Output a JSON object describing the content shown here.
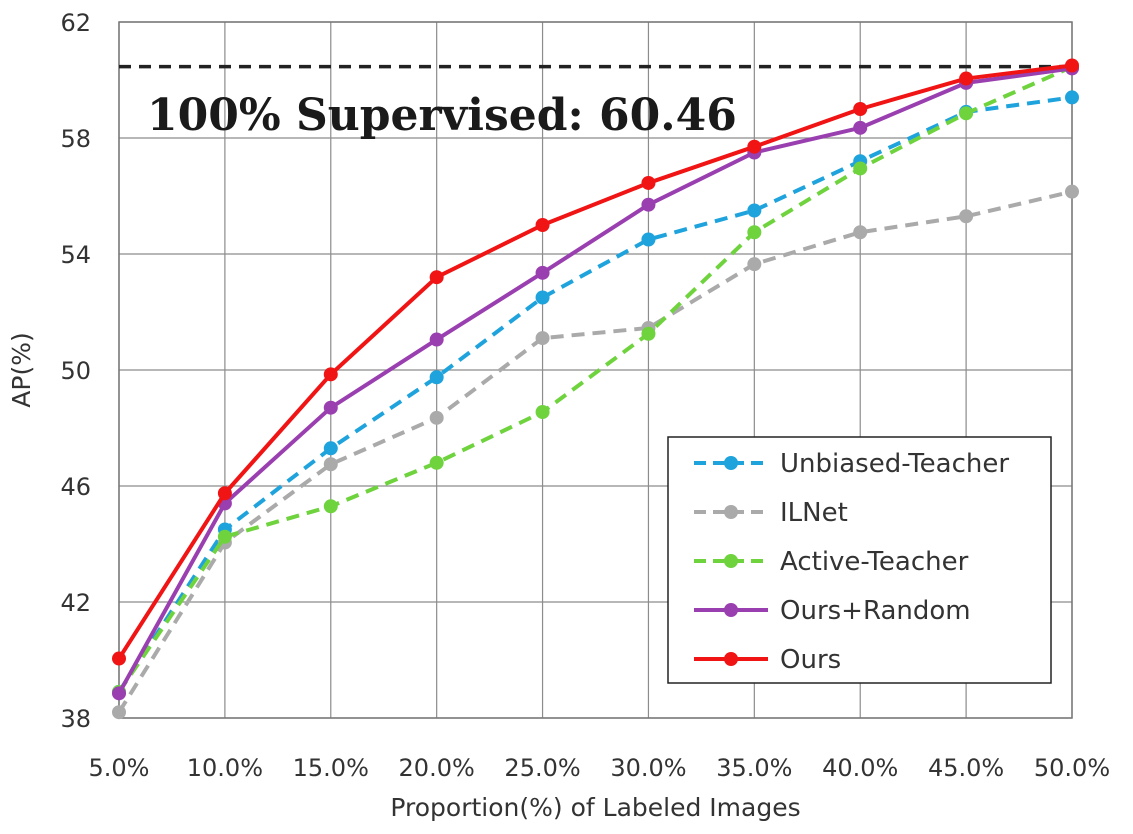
{
  "chart_data": {
    "type": "line",
    "title": "",
    "xlabel": "Proportion(%) of Labeled Images",
    "ylabel": "AP(%)",
    "categories": [
      "5.0%",
      "10.0%",
      "15.0%",
      "20.0%",
      "25.0%",
      "30.0%",
      "35.0%",
      "40.0%",
      "45.0%",
      "50.0%"
    ],
    "ylim": [
      38,
      62
    ],
    "yticks": [
      "38",
      "42",
      "46",
      "50",
      "54",
      "58",
      "62"
    ],
    "grid": true,
    "legend_position": "bottom-right",
    "reference_line": {
      "value": 60.46,
      "style": "dashed",
      "color": "#222222"
    },
    "annotation": "100% Supervised: 60.46",
    "series": [
      {
        "name": "Unbiased-Teacher",
        "style": "dashed",
        "color": "#1fa3dc",
        "values": [
          38.9,
          44.5,
          47.3,
          49.75,
          52.5,
          54.5,
          55.5,
          57.2,
          58.9,
          59.4
        ]
      },
      {
        "name": "ILNet",
        "style": "dashed",
        "color": "#aaaaaa",
        "values": [
          38.2,
          44.05,
          46.75,
          48.35,
          51.1,
          51.45,
          53.65,
          54.75,
          55.3,
          56.15
        ]
      },
      {
        "name": "Active-Teacher",
        "style": "dashed",
        "color": "#6fd33e",
        "values": [
          38.9,
          44.25,
          45.3,
          46.8,
          48.55,
          51.25,
          54.75,
          56.95,
          58.85,
          60.45
        ]
      },
      {
        "name": "Ours+Random",
        "style": "solid",
        "color": "#9a3fb0",
        "values": [
          38.85,
          45.4,
          48.7,
          51.05,
          53.35,
          55.7,
          57.5,
          58.35,
          59.9,
          60.4
        ]
      },
      {
        "name": "Ours",
        "style": "solid",
        "color": "#f01414",
        "values": [
          40.05,
          45.75,
          49.85,
          53.2,
          55.0,
          56.45,
          57.7,
          59.0,
          60.05,
          60.5
        ]
      }
    ]
  }
}
